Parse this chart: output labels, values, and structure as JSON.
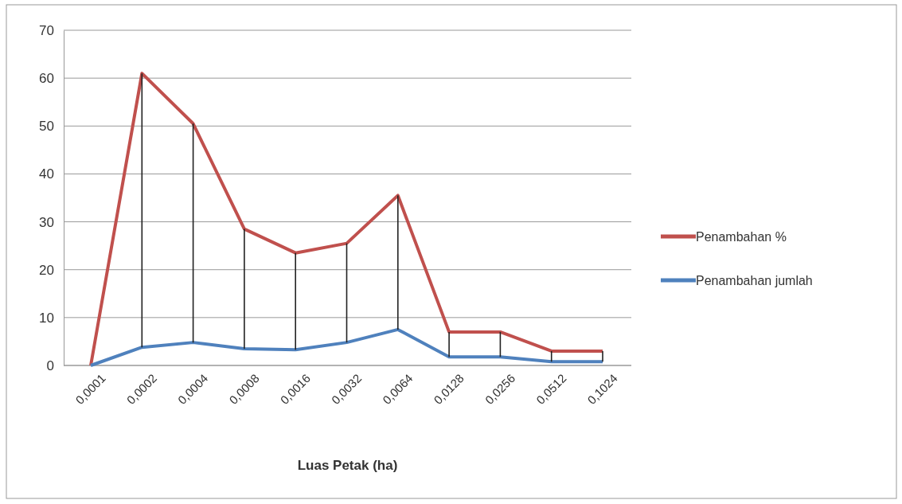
{
  "chart_data": {
    "type": "line",
    "xlabel": "Luas Petak (ha)",
    "categories": [
      "0,0001",
      "0,0002",
      "0,0004",
      "0,0008",
      "0,0016",
      "0,0032",
      "0,0064",
      "0,0128",
      "0,0256",
      "0,0512",
      "0,1024"
    ],
    "series": [
      {
        "name": "Penambahan %",
        "color": "#c0504d",
        "values": [
          0,
          61,
          50.5,
          28.5,
          23.5,
          25.5,
          35.5,
          7,
          7,
          3,
          3
        ],
        "errors": [
          null,
          [
            3.8,
            61
          ],
          [
            4.8,
            50.5
          ],
          [
            3.5,
            28.5
          ],
          [
            3.3,
            23.5
          ],
          [
            4.8,
            25.5
          ],
          [
            7.5,
            35.5
          ],
          [
            1.8,
            7
          ],
          [
            1.8,
            7
          ],
          [
            0.8,
            3
          ],
          [
            0.8,
            3
          ]
        ]
      },
      {
        "name": "Penambahan jumlah",
        "color": "#4f81bd",
        "values": [
          0,
          3.8,
          4.8,
          3.5,
          3.3,
          4.8,
          7.5,
          1.8,
          1.8,
          0.8,
          0.8
        ]
      }
    ],
    "ylim": [
      0,
      70
    ],
    "yticks": [
      0,
      10,
      20,
      30,
      40,
      50,
      60,
      70
    ],
    "grid": "y",
    "legend": "right",
    "marker": "none",
    "line_style": "solid"
  }
}
